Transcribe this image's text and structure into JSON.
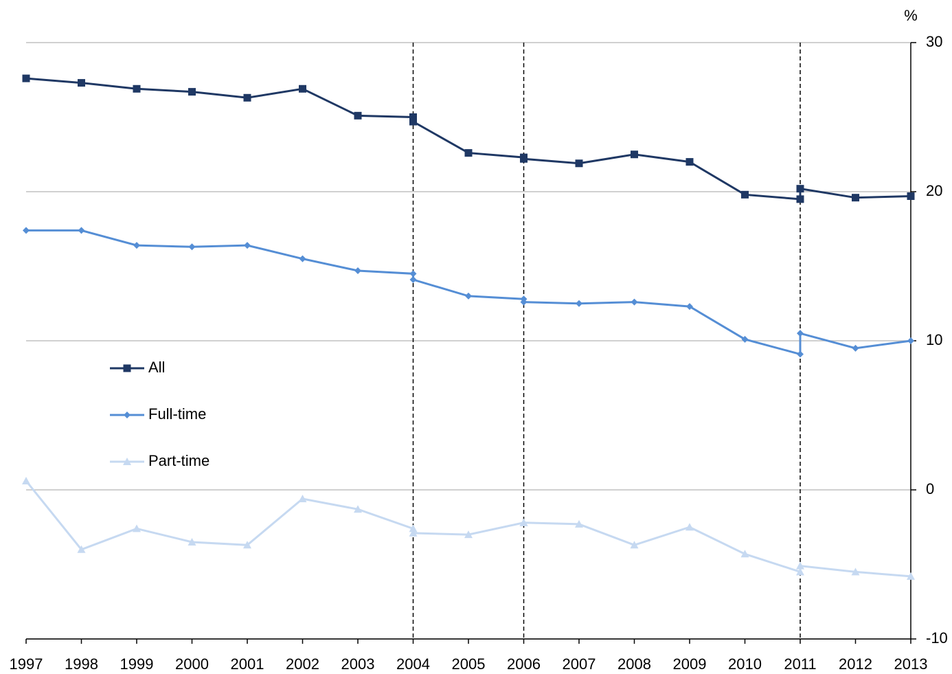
{
  "chart_data": {
    "type": "line",
    "y_label": "%",
    "x": [
      1997,
      1998,
      1999,
      2000,
      2001,
      2002,
      2003,
      2004,
      2004,
      2005,
      2006,
      2006,
      2007,
      2008,
      2009,
      2010,
      2011,
      2011,
      2012,
      2013
    ],
    "xlim": [
      1997,
      2013
    ],
    "xticks": [
      1997,
      1998,
      1999,
      2000,
      2001,
      2002,
      2003,
      2004,
      2005,
      2006,
      2007,
      2008,
      2009,
      2010,
      2011,
      2012,
      2013
    ],
    "ylim": [
      -10,
      30
    ],
    "yticks": [
      -10,
      0,
      10,
      20,
      30
    ],
    "grid": true,
    "y_axis_side": "right",
    "breaks": [
      2004,
      2006,
      2011
    ],
    "legend": "left",
    "series": [
      {
        "name": "All",
        "color": "#1f3864",
        "marker": "square",
        "values": [
          27.6,
          27.3,
          26.9,
          26.7,
          26.3,
          26.9,
          25.1,
          25.0,
          24.7,
          22.6,
          22.3,
          22.2,
          21.9,
          22.5,
          22.0,
          19.8,
          19.5,
          20.2,
          19.6,
          19.7
        ]
      },
      {
        "name": "Full-time",
        "color": "#558ed5",
        "marker": "diamond",
        "values": [
          17.4,
          17.4,
          16.4,
          16.3,
          16.4,
          15.5,
          14.7,
          14.5,
          14.1,
          13.0,
          12.8,
          12.6,
          12.5,
          12.6,
          12.3,
          10.1,
          9.1,
          10.5,
          9.5,
          10.0
        ]
      },
      {
        "name": "Part-time",
        "color": "#c6d9f1",
        "marker": "triangle",
        "values": [
          0.6,
          -4.0,
          -2.6,
          -3.5,
          -3.7,
          -0.6,
          -1.3,
          -2.6,
          -2.9,
          -3.0,
          -2.2,
          -2.2,
          -2.3,
          -3.7,
          -2.5,
          -4.3,
          -5.5,
          -5.1,
          -5.5,
          -5.8
        ]
      }
    ]
  }
}
